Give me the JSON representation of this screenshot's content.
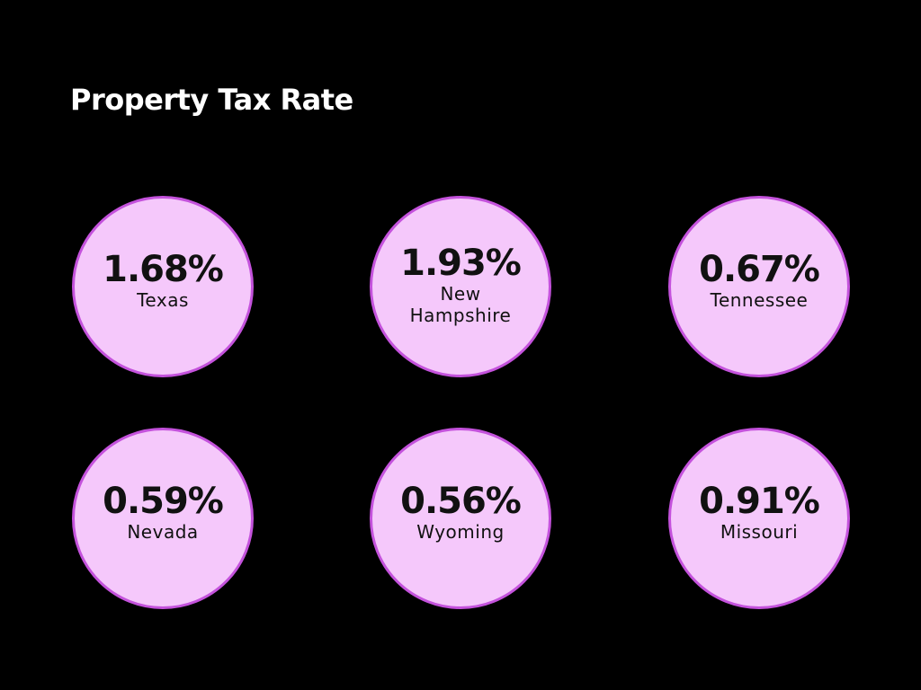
{
  "title": "Property Tax Rate",
  "colors": {
    "background": "#000000",
    "circle_fill": "#f5c8fb",
    "circle_border": "#c452dc"
  },
  "items": [
    {
      "value": "1.68%",
      "label": "Texas"
    },
    {
      "value": "1.93%",
      "label": "New Hampshire"
    },
    {
      "value": "0.67%",
      "label": "Tennessee"
    },
    {
      "value": "0.59%",
      "label": "Nevada"
    },
    {
      "value": "0.56%",
      "label": "Wyoming"
    },
    {
      "value": "0.91%",
      "label": "Missouri"
    }
  ]
}
